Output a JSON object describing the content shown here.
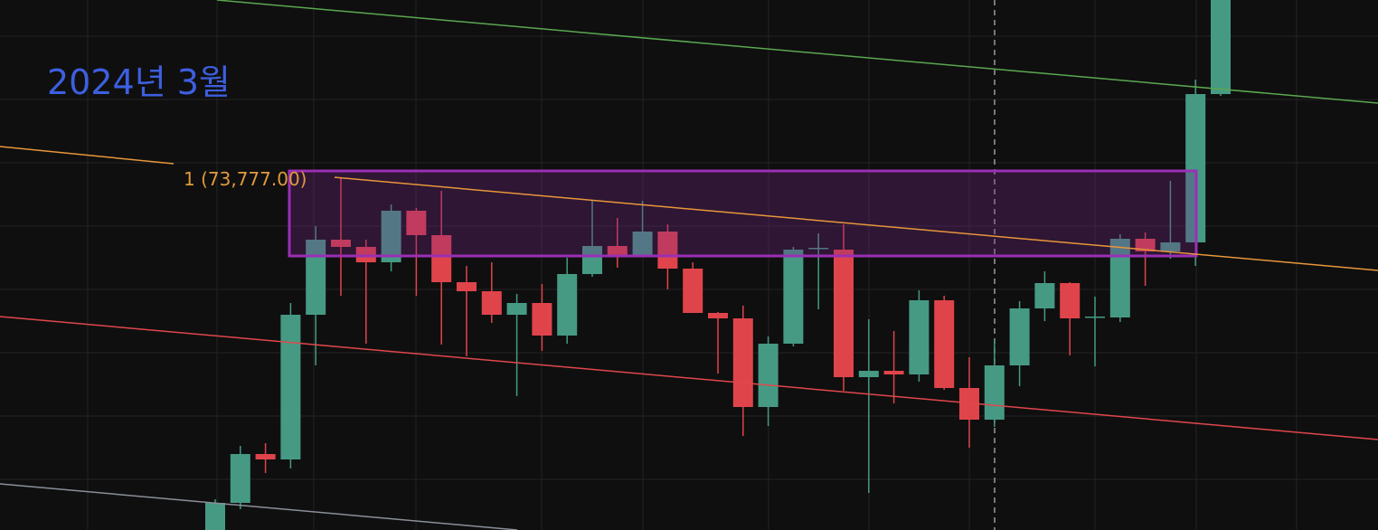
{
  "chart_data": {
    "type": "candlestick",
    "title": "2024년 3월",
    "annotations": [
      "1 (73,777.00)"
    ],
    "ylim": [
      57960,
      81400
    ],
    "up_color": "#469a84",
    "down_color": "#e0444b",
    "open": [
      57800,
      59160,
      61320,
      61080,
      67480,
      70800,
      70480,
      69800,
      72080,
      71000,
      68920,
      68520,
      67480,
      68000,
      66560,
      69280,
      70520,
      70120,
      71160,
      69520,
      67560,
      67320,
      63400,
      66200,
      70400,
      70360,
      64720,
      65000,
      64840,
      68120,
      64240,
      62840,
      65240,
      67760,
      68880,
      67360,
      67360,
      70840,
      70280,
      70680,
      77240
    ],
    "high": [
      59320,
      61680,
      61800,
      68000,
      71400,
      73520,
      70800,
      72360,
      72200,
      72960,
      69640,
      69800,
      68400,
      68840,
      70000,
      72520,
      71760,
      72520,
      71480,
      69800,
      67600,
      67880,
      66520,
      70480,
      71080,
      71480,
      67280,
      66760,
      68560,
      68320,
      65600,
      66360,
      68080,
      69400,
      68920,
      68280,
      71040,
      71120,
      73400,
      77880,
      82600
    ],
    "low": [
      57400,
      58880,
      60480,
      60680,
      65240,
      68320,
      66200,
      69400,
      68320,
      66160,
      65640,
      67120,
      63880,
      65880,
      66200,
      69160,
      69560,
      70040,
      68600,
      67560,
      64880,
      62120,
      62560,
      66080,
      67720,
      64120,
      59600,
      63560,
      64520,
      64160,
      61600,
      62520,
      64320,
      67200,
      65680,
      65200,
      67160,
      68760,
      69960,
      69640,
      77160
    ],
    "close": [
      59160,
      61320,
      61080,
      67480,
      70800,
      70480,
      69800,
      72080,
      71000,
      68920,
      68520,
      67480,
      68000,
      66560,
      69280,
      70520,
      70120,
      71160,
      69520,
      67560,
      67320,
      63400,
      66200,
      70360,
      70440,
      64720,
      65000,
      64840,
      68120,
      64240,
      62840,
      65240,
      67760,
      68880,
      67320,
      67400,
      70840,
      70280,
      70680,
      77240,
      82200
    ]
  }
}
